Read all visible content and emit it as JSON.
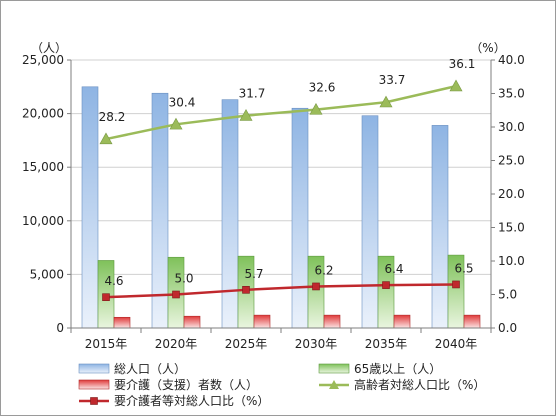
{
  "chart_data": {
    "type": "bar",
    "categories": [
      "2015年",
      "2020年",
      "2025年",
      "2030年",
      "2035年",
      "2040年"
    ],
    "left_axis": {
      "unit_label": "（人）",
      "ylim": [
        0,
        25000
      ],
      "ticks": [
        "0",
        "5,000",
        "10,000",
        "15,000",
        "20,000",
        "25,000"
      ],
      "tick_values": [
        0,
        5000,
        10000,
        15000,
        20000,
        25000
      ]
    },
    "right_axis": {
      "unit_label": "（%）",
      "ylim": [
        0,
        40
      ],
      "ticks": [
        "0.0",
        "5.0",
        "10.0",
        "15.0",
        "20.0",
        "25.0",
        "30.0",
        "35.0",
        "40.0"
      ],
      "tick_values": [
        0,
        5,
        10,
        15,
        20,
        25,
        30,
        35,
        40
      ]
    },
    "grid": true,
    "legend_position": "bottom",
    "series": [
      {
        "name": "総人口（人）",
        "kind": "bar",
        "axis": "left",
        "color": "#8eb4e3",
        "values": [
          22500,
          21900,
          21300,
          20500,
          19800,
          18900
        ]
      },
      {
        "name": "65歳以上（人）",
        "kind": "bar",
        "axis": "left",
        "color": "#7fc15a",
        "values": [
          6300,
          6600,
          6700,
          6700,
          6700,
          6800
        ]
      },
      {
        "name": "要介護（支援）者数（人）",
        "kind": "bar",
        "axis": "left",
        "color": "#e03a3a",
        "values": [
          1000,
          1100,
          1200,
          1200,
          1200,
          1200
        ]
      },
      {
        "name": "高齢者対総人口比（%）",
        "kind": "line",
        "axis": "right",
        "color": "#9bbb59",
        "marker": "triangle",
        "values": [
          28.2,
          30.4,
          31.7,
          32.6,
          33.7,
          36.1
        ],
        "labels": [
          "28.2",
          "30.4",
          "31.7",
          "32.6",
          "33.7",
          "36.1"
        ]
      },
      {
        "name": "要介護者等対総人口比（%）",
        "kind": "line",
        "axis": "right",
        "color": "#c0282d",
        "marker": "square",
        "values": [
          4.6,
          5.0,
          5.7,
          6.2,
          6.4,
          6.5
        ],
        "labels": [
          "4.6",
          "5.0",
          "5.7",
          "6.2",
          "6.4",
          "6.5"
        ]
      }
    ]
  }
}
